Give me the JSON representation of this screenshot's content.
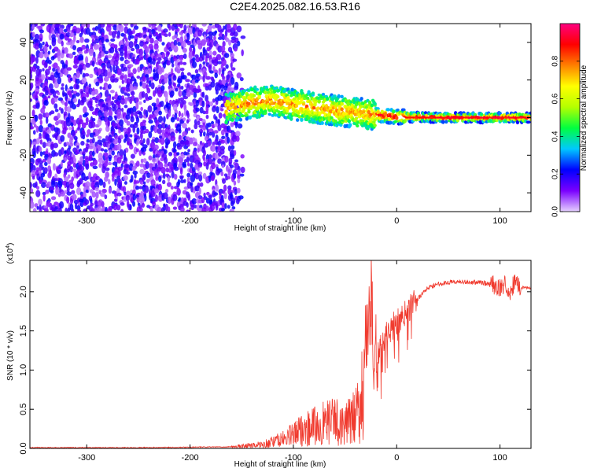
{
  "title": "C2E4.2025.082.16.53.R16",
  "chart_data": [
    {
      "type": "heatmap",
      "xlabel": "Height of straight line (km)",
      "ylabel": "Frequency (Hz)",
      "xlim": [
        -355,
        130
      ],
      "ylim": [
        -50,
        50
      ],
      "xticks": [
        -300,
        -200,
        -100,
        0,
        100
      ],
      "yticks": [
        -40,
        -20,
        0,
        20,
        40
      ],
      "colorbar": {
        "label": "Normalized spectral amplitude",
        "range": [
          0,
          1
        ],
        "ticks": [
          0.0,
          0.2,
          0.4,
          0.6,
          0.8
        ],
        "colors": [
          "#e6d2ff",
          "#7a00ff",
          "#0000ff",
          "#00c8ff",
          "#00ff40",
          "#b4ff00",
          "#ffff00",
          "#ff8000",
          "#ff0000",
          "#ff0080"
        ]
      },
      "noise_region": {
        "x_from": -355,
        "x_to": -160,
        "freq_from": -50,
        "freq_to": 50,
        "amplitude": 0.15
      },
      "signal_track": [
        {
          "x": -165,
          "freq": 5
        },
        {
          "x": -140,
          "freq": 8
        },
        {
          "x": -120,
          "freq": 9
        },
        {
          "x": -100,
          "freq": 7
        },
        {
          "x": -80,
          "freq": 5
        },
        {
          "x": -60,
          "freq": 4
        },
        {
          "x": -40,
          "freq": 2.5
        },
        {
          "x": -20,
          "freq": 1.5
        },
        {
          "x": 0,
          "freq": 0.5
        },
        {
          "x": 50,
          "freq": 0
        },
        {
          "x": 130,
          "freq": 0
        }
      ]
    },
    {
      "type": "line",
      "xlabel": "Height of straight line (km)",
      "ylabel": "SNR (10 * v/v)",
      "multiplier_label": "(x10",
      "multiplier_exp": "4",
      "xlim": [
        -355,
        130
      ],
      "ylim": [
        0,
        2.4
      ],
      "xticks": [
        -300,
        -200,
        -100,
        0,
        100
      ],
      "yticks": [
        0.0,
        0.5,
        1.0,
        1.5,
        2.0
      ],
      "series": [
        {
          "color": "#f03a2e",
          "x": [
            -355,
            -300,
            -250,
            -200,
            -160,
            -130,
            -110,
            -100,
            -90,
            -80,
            -70,
            -60,
            -50,
            -40,
            -35,
            -30,
            -27,
            -25,
            -22,
            -20,
            -15,
            -10,
            -5,
            0,
            10,
            20,
            30,
            40,
            50,
            60,
            70,
            80,
            90,
            95,
            100,
            105,
            110,
            115,
            120,
            130
          ],
          "y": [
            0.01,
            0.01,
            0.01,
            0.015,
            0.02,
            0.05,
            0.12,
            0.18,
            0.25,
            0.28,
            0.32,
            0.35,
            0.3,
            0.4,
            0.55,
            1.2,
            1.6,
            2.0,
            1.3,
            1.2,
            1.3,
            1.45,
            1.55,
            1.6,
            1.75,
            1.9,
            2.05,
            2.1,
            2.12,
            2.13,
            2.12,
            2.12,
            2.1,
            2.08,
            2.05,
            2.1,
            2.0,
            2.15,
            2.05,
            2.05
          ]
        }
      ]
    }
  ]
}
